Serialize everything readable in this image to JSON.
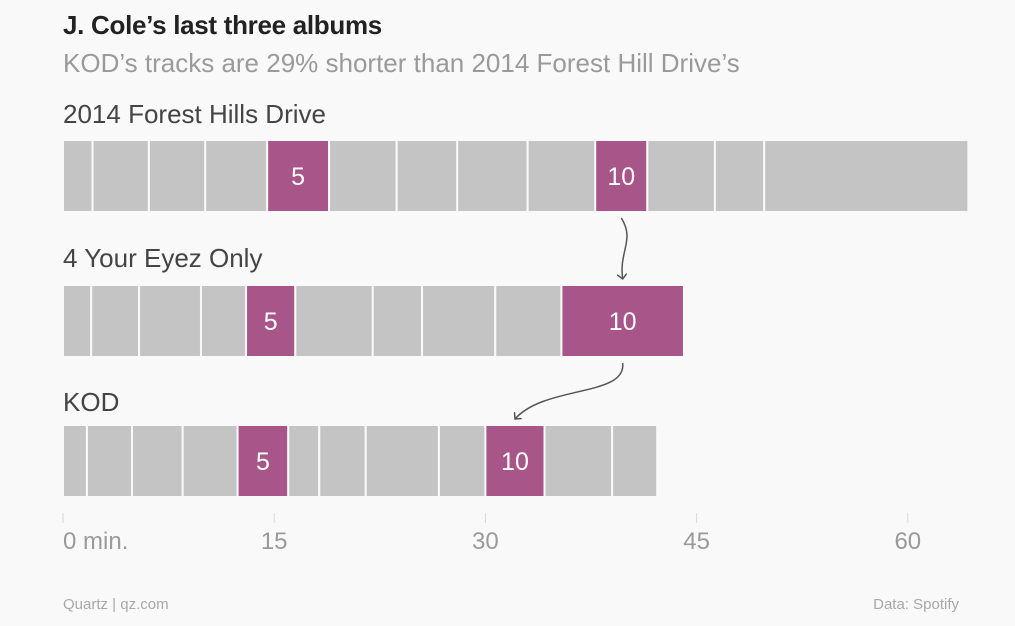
{
  "header": {
    "title": "J. Cole’s last three albums",
    "subtitle": "KOD’s tracks are 29% shorter than 2014 Forest Hill Drive’s"
  },
  "footer": {
    "source_left": "Quartz | qz.com",
    "source_right": "Data: Spotify"
  },
  "colors": {
    "track": "#c4c4c4",
    "highlight": "#a8558a",
    "divider": "#f9f9f9",
    "arrow": "#555555",
    "axis_text": "#9a9a9a"
  },
  "chart_data": {
    "type": "bar",
    "orientation": "horizontal-stacked",
    "xunit": "min.",
    "xlim": [
      0,
      64.5
    ],
    "ticks": [
      {
        "value": 0,
        "label": "0 min."
      },
      {
        "value": 15,
        "label": "15"
      },
      {
        "value": 30,
        "label": "30"
      },
      {
        "value": 45,
        "label": "45"
      },
      {
        "value": 60,
        "label": "60"
      }
    ],
    "highlighted_tracks": [
      5,
      10
    ],
    "albums": [
      {
        "name": "2014 Forest Hills Drive",
        "track_lengths_min": [
          2.1,
          4.0,
          4.0,
          4.4,
          4.4,
          4.8,
          4.3,
          5.0,
          4.8,
          3.7,
          4.8,
          3.5,
          14.5
        ]
      },
      {
        "name": "4 Your Eyez Only",
        "track_lengths_min": [
          2.0,
          3.4,
          4.4,
          3.2,
          3.5,
          5.5,
          3.5,
          5.2,
          4.7,
          8.7
        ]
      },
      {
        "name": "KOD",
        "track_lengths_min": [
          1.7,
          3.2,
          3.6,
          3.9,
          3.6,
          2.2,
          3.3,
          5.2,
          3.3,
          4.2,
          4.8,
          3.2
        ]
      }
    ]
  }
}
